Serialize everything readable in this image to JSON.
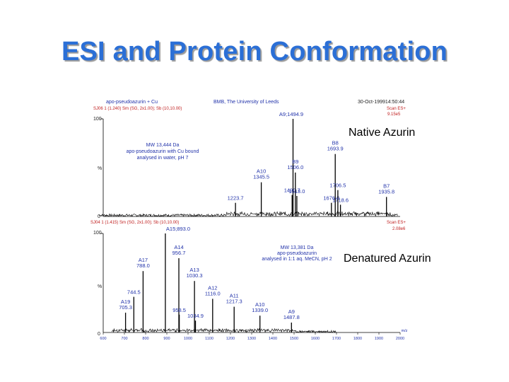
{
  "slide": {
    "title": "ESI and Protein Conformation"
  },
  "chart_data": [
    {
      "type": "line",
      "sample": "apo-pseudoazurin + Cu",
      "scan_params": "SJ06 1 (1.240) Sm (SG, 2x1.00); Sb (10,10.00)",
      "institution": "BMB, The University of Leeds",
      "timestamp": "30-Oct-199914:50:44",
      "scan_mode": "Scan ES+",
      "intensity": "9.15e5",
      "base_peak": "A9;1494.9",
      "annotation": "MW 13,444 Da\napo-pseudoazurin with Cu bound\nanalysed in water, pH 7",
      "label": "Native Azurin",
      "y_tick": "100",
      "y_zero": "0",
      "y_pct": "%",
      "xlim": [
        600,
        2000
      ],
      "ylim": [
        0,
        100
      ],
      "peaks": [
        {
          "mz": 1223.7,
          "rel": 14,
          "label": "1223.7"
        },
        {
          "mz": 1345.5,
          "rel": 35,
          "label": "A10\n1345.5"
        },
        {
          "mz": 1490.7,
          "rel": 22,
          "label": "1490.7"
        },
        {
          "mz": 1494.9,
          "rel": 100,
          "label": ""
        },
        {
          "mz": 1506.0,
          "rel": 45,
          "label": "B9\n1506.0"
        },
        {
          "mz": 1513.0,
          "rel": 21,
          "label": "1513.0"
        },
        {
          "mz": 1676.0,
          "rel": 14,
          "label": "1676.0"
        },
        {
          "mz": 1693.9,
          "rel": 64,
          "label": "B8\n1693.9"
        },
        {
          "mz": 1706.5,
          "rel": 27,
          "label": "1706.5"
        },
        {
          "mz": 1718.6,
          "rel": 12,
          "label": "1718.6"
        },
        {
          "mz": 1935.8,
          "rel": 20,
          "label": "B7\n1935.8"
        }
      ]
    },
    {
      "type": "line",
      "scan_params": "SJ04 1 (1.415) Sm (SG, 2x1.00); Sb (10,10.00)",
      "scan_mode": "Scan ES+",
      "intensity": "2.08e6",
      "base_peak": "A15;893.0",
      "annotation": "MW 13,381 Da\napo-pseudoazurin\nanalysed in 1:1 aq. MeCN, pH 2",
      "label": "Denatured Azurin",
      "y_tick": "100",
      "y_zero": "0",
      "y_pct": "%",
      "xlabel": "m/z",
      "xlim": [
        600,
        2000
      ],
      "ylim": [
        0,
        100
      ],
      "x_ticks": [
        600,
        700,
        800,
        900,
        1000,
        1100,
        1200,
        1300,
        1400,
        1500,
        1600,
        1700,
        1800,
        1900,
        2000
      ],
      "peaks": [
        {
          "mz": 705.3,
          "rel": 20,
          "label": "A19\n705.3"
        },
        {
          "mz": 744.5,
          "rel": 36,
          "label": "744.5"
        },
        {
          "mz": 788.0,
          "rel": 62,
          "label": "A17\n788.0"
        },
        {
          "mz": 893.0,
          "rel": 100,
          "label": ""
        },
        {
          "mz": 956.7,
          "rel": 75,
          "label": "A14\n956.7"
        },
        {
          "mz": 958.5,
          "rel": 18,
          "label": "958.5"
        },
        {
          "mz": 1030.3,
          "rel": 52,
          "label": "A13\n1030.3"
        },
        {
          "mz": 1034.9,
          "rel": 12,
          "label": "1034.9"
        },
        {
          "mz": 1116.0,
          "rel": 34,
          "label": "A12\n1116.0"
        },
        {
          "mz": 1217.3,
          "rel": 26,
          "label": "A11\n1217.3"
        },
        {
          "mz": 1339.0,
          "rel": 17,
          "label": "A10\n1339.0"
        },
        {
          "mz": 1487.8,
          "rel": 10,
          "label": "A9\n1487.8"
        }
      ]
    }
  ]
}
